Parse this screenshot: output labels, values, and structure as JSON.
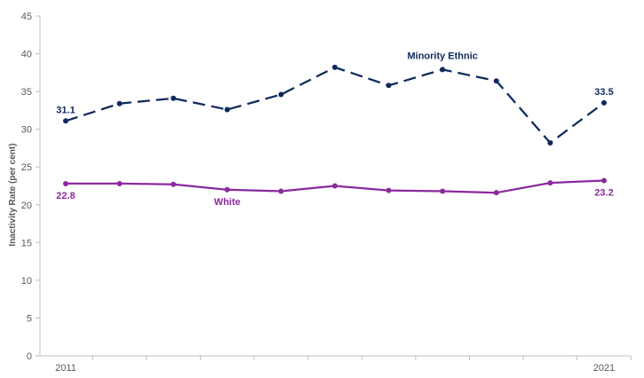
{
  "chart_data": {
    "type": "line",
    "title": "",
    "xlabel": "",
    "ylabel": "Inactivity Rate (per cent)",
    "ylim": [
      0,
      45
    ],
    "yticks": [
      0,
      5,
      10,
      15,
      20,
      25,
      30,
      35,
      40,
      45
    ],
    "x": [
      2011,
      2012,
      2013,
      2014,
      2015,
      2016,
      2017,
      2018,
      2019,
      2020,
      2021
    ],
    "x_tick_labels": [
      "2011",
      "2021"
    ],
    "grid": false,
    "series": [
      {
        "name": "Minority Ethnic",
        "color": "#0d2a5c",
        "dash": true,
        "values": [
          31.1,
          33.4,
          34.1,
          32.6,
          34.6,
          38.2,
          35.8,
          37.9,
          36.4,
          28.2,
          33.5
        ],
        "start_label": "31.1",
        "end_label": "33.5"
      },
      {
        "name": "White",
        "color": "#8b2a9e",
        "dash": false,
        "values": [
          22.8,
          22.8,
          22.7,
          22.0,
          21.8,
          22.5,
          21.9,
          21.8,
          21.6,
          22.9,
          23.2
        ],
        "start_label": "22.8",
        "end_label": "23.2"
      }
    ]
  }
}
